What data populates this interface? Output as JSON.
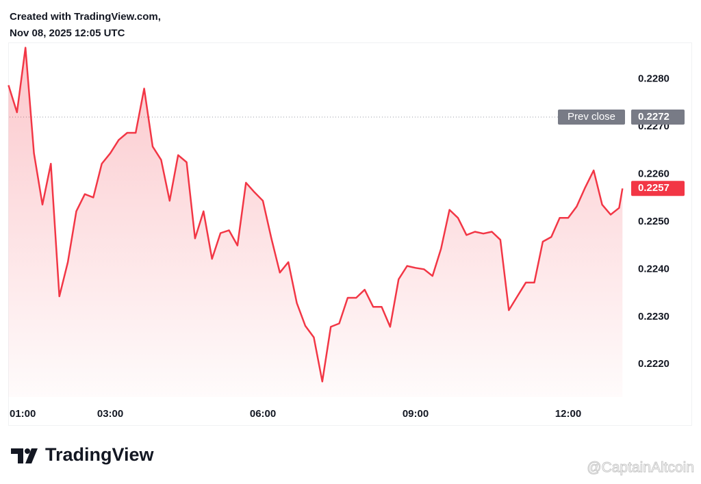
{
  "chart_data": {
    "type": "area",
    "title": "Created with TradingView.com,",
    "subtitle": "Nov 08, 2025 12:05 UTC",
    "color": "#f23645",
    "x": [
      "01:00",
      "01:10",
      "01:20",
      "01:30",
      "01:40",
      "01:50",
      "02:00",
      "02:10",
      "02:20",
      "02:30",
      "02:40",
      "02:50",
      "03:00",
      "03:10",
      "03:20",
      "03:30",
      "03:40",
      "03:50",
      "04:00",
      "04:10",
      "04:20",
      "04:30",
      "04:40",
      "04:50",
      "05:00",
      "05:10",
      "05:20",
      "05:30",
      "05:40",
      "05:50",
      "06:00",
      "06:10",
      "06:20",
      "06:30",
      "06:40",
      "06:50",
      "07:00",
      "07:10",
      "07:20",
      "07:30",
      "07:40",
      "07:50",
      "08:00",
      "08:10",
      "08:20",
      "08:30",
      "08:40",
      "08:50",
      "09:00",
      "09:10",
      "09:20",
      "09:30",
      "09:40",
      "09:50",
      "10:00",
      "10:10",
      "10:20",
      "10:30",
      "10:40",
      "10:50",
      "11:00",
      "11:10",
      "11:20",
      "11:30",
      "11:40",
      "11:50",
      "12:00",
      "12:10",
      "12:20",
      "12:30",
      "12:40",
      "12:50",
      "13:00",
      "13:04"
    ],
    "values": [
      0.22787,
      0.2273,
      0.22866,
      0.22644,
      0.22536,
      0.22622,
      0.22343,
      0.22415,
      0.22522,
      0.22558,
      0.22551,
      0.22622,
      0.22644,
      0.22672,
      0.22687,
      0.22687,
      0.2278,
      0.22658,
      0.2263,
      0.22544,
      0.2264,
      0.22625,
      0.22465,
      0.22522,
      0.22422,
      0.22476,
      0.22482,
      0.2245,
      0.22582,
      0.22562,
      0.22544,
      0.22465,
      0.22393,
      0.22415,
      0.22329,
      0.22281,
      0.22257,
      0.22164,
      0.22279,
      0.22286,
      0.2234,
      0.2234,
      0.22357,
      0.22321,
      0.22321,
      0.22279,
      0.22379,
      0.22407,
      0.22403,
      0.224,
      0.22386,
      0.22443,
      0.22525,
      0.22508,
      0.22472,
      0.22479,
      0.22475,
      0.22479,
      0.22462,
      0.22314,
      0.22343,
      0.22372,
      0.22372,
      0.22458,
      0.22468,
      0.22508,
      0.22508,
      0.22532,
      0.22572,
      0.22608,
      0.22536,
      0.22515,
      0.22529,
      0.2257
    ],
    "ylim": [
      0.22114,
      0.22877
    ],
    "yticks": [
      {
        "value": 0.222,
        "label": "0.2220"
      },
      {
        "value": 0.223,
        "label": "0.2230"
      },
      {
        "value": 0.224,
        "label": "0.2240"
      },
      {
        "value": 0.225,
        "label": "0.2250"
      },
      {
        "value": 0.226,
        "label": "0.2260"
      },
      {
        "value": 0.227,
        "label": "0.2270"
      },
      {
        "value": 0.228,
        "label": "0.2280"
      }
    ],
    "xlim": [
      "00:58",
      "13:10"
    ],
    "xticks": [
      "01:00",
      "03:00",
      "06:00",
      "09:00",
      "12:00"
    ],
    "grid": false,
    "prev_close": {
      "label": "Prev close",
      "value": 0.2272
    }
  },
  "brand": "TradingView",
  "watermark": "@CaptainAltcoin"
}
